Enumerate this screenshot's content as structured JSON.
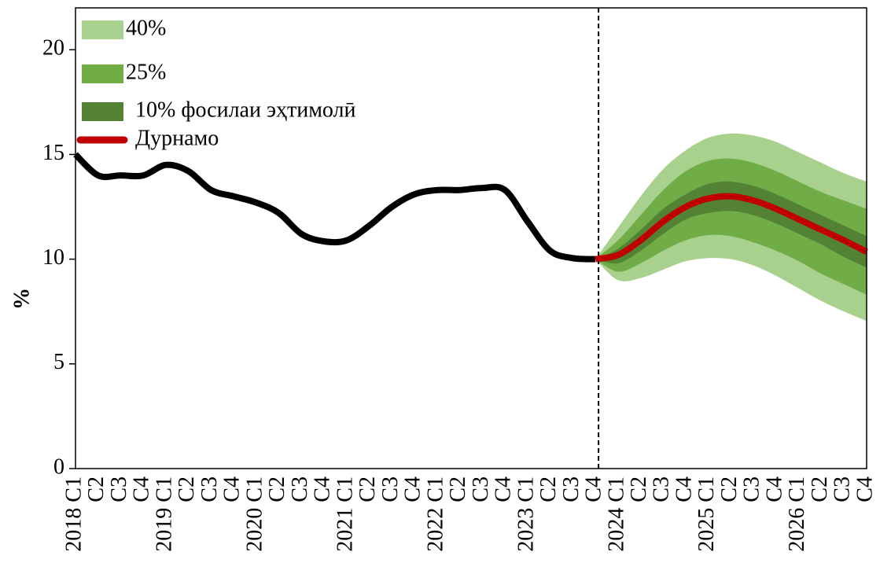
{
  "chart_data": {
    "type": "fan",
    "y_label": "%",
    "categories": [
      "2018 C1",
      "C2",
      "C3",
      "C4",
      "2019 C1",
      "C2",
      "C3",
      "C4",
      "2020 C1",
      "C2",
      "C3",
      "C4",
      "2021 C1",
      "C2",
      "C3",
      "C4",
      "2022 C1",
      "C2",
      "C3",
      "C4",
      "2023 C1",
      "C2",
      "C3",
      "C4",
      "2024 C1",
      "C2",
      "C3",
      "C4",
      "2025 C1",
      "C2",
      "C3",
      "C4",
      "2026 C1",
      "C2",
      "C3",
      "C4"
    ],
    "ylim": [
      0,
      22
    ],
    "yticks": [
      0,
      5,
      10,
      15,
      20
    ],
    "history": {
      "color": "#000000",
      "values": [
        15.0,
        14.0,
        14.0,
        14.0,
        14.5,
        14.2,
        13.3,
        13.0,
        12.7,
        12.2,
        11.2,
        10.85,
        10.9,
        11.6,
        12.5,
        13.1,
        13.3,
        13.3,
        13.4,
        13.3,
        11.8,
        10.4,
        10.05,
        10.0,
        null,
        null,
        null,
        null,
        null,
        null,
        null,
        null,
        null,
        null,
        null,
        null
      ]
    },
    "bands": [
      {
        "name": "40%",
        "color": "#a9d18e",
        "upper": [
          null,
          null,
          null,
          null,
          null,
          null,
          null,
          null,
          null,
          null,
          null,
          null,
          null,
          null,
          null,
          null,
          null,
          null,
          null,
          null,
          null,
          null,
          null,
          10.0,
          11.5,
          13.0,
          14.3,
          15.2,
          15.8,
          16.0,
          15.9,
          15.6,
          15.1,
          14.6,
          14.1,
          13.7
        ],
        "lower": [
          null,
          null,
          null,
          null,
          null,
          null,
          null,
          null,
          null,
          null,
          null,
          null,
          null,
          null,
          null,
          null,
          null,
          null,
          null,
          null,
          null,
          null,
          null,
          10.0,
          9.0,
          9.1,
          9.5,
          9.9,
          10.05,
          10.0,
          9.7,
          9.2,
          8.6,
          8.0,
          7.5,
          7.05
        ]
      },
      {
        "name": "25%",
        "color": "#70ad47",
        "upper": [
          null,
          null,
          null,
          null,
          null,
          null,
          null,
          null,
          null,
          null,
          null,
          null,
          null,
          null,
          null,
          null,
          null,
          null,
          null,
          null,
          null,
          null,
          null,
          10.0,
          10.9,
          12.1,
          13.3,
          14.2,
          14.7,
          14.8,
          14.6,
          14.2,
          13.7,
          13.2,
          12.8,
          12.4
        ],
        "lower": [
          null,
          null,
          null,
          null,
          null,
          null,
          null,
          null,
          null,
          null,
          null,
          null,
          null,
          null,
          null,
          null,
          null,
          null,
          null,
          null,
          null,
          null,
          null,
          10.0,
          9.4,
          9.8,
          10.4,
          10.9,
          11.15,
          11.1,
          10.8,
          10.4,
          9.9,
          9.3,
          8.8,
          8.3
        ]
      },
      {
        "name": "10% фосилаи эҳтимолӣ",
        "color": "#548235",
        "upper": [
          null,
          null,
          null,
          null,
          null,
          null,
          null,
          null,
          null,
          null,
          null,
          null,
          null,
          null,
          null,
          null,
          null,
          null,
          null,
          null,
          null,
          null,
          null,
          10.0,
          10.5,
          11.4,
          12.4,
          13.1,
          13.6,
          13.7,
          13.5,
          13.1,
          12.6,
          12.1,
          11.6,
          11.1
        ],
        "lower": [
          null,
          null,
          null,
          null,
          null,
          null,
          null,
          null,
          null,
          null,
          null,
          null,
          null,
          null,
          null,
          null,
          null,
          null,
          null,
          null,
          null,
          null,
          null,
          10.0,
          9.8,
          10.4,
          11.2,
          11.9,
          12.2,
          12.3,
          12.1,
          11.7,
          11.2,
          10.7,
          10.1,
          9.6
        ]
      }
    ],
    "forecast": {
      "name": "Дурнамо",
      "color": "#c00000",
      "values": [
        null,
        null,
        null,
        null,
        null,
        null,
        null,
        null,
        null,
        null,
        null,
        null,
        null,
        null,
        null,
        null,
        null,
        null,
        null,
        null,
        null,
        null,
        null,
        10.0,
        10.2,
        10.9,
        11.8,
        12.5,
        12.9,
        13.0,
        12.8,
        12.4,
        11.9,
        11.4,
        10.9,
        10.35
      ]
    }
  }
}
